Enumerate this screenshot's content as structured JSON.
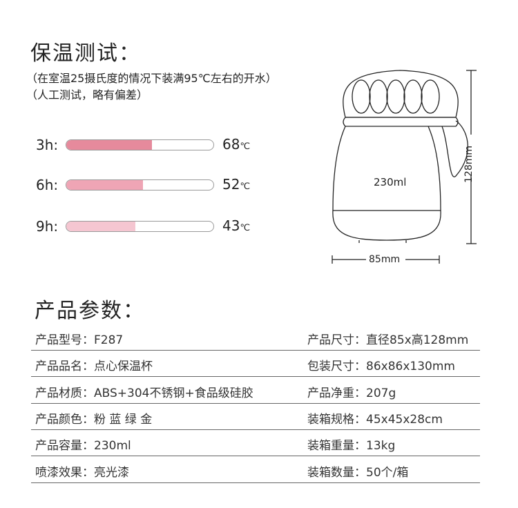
{
  "test": {
    "title": "保温测试：",
    "note1": "（在室温25摄氏度的情况下装满95℃左右的开水）",
    "note2": "（人工测试，略有偏差）",
    "bars": [
      {
        "label": "3h:",
        "value": "68",
        "unit": "℃",
        "fill_percent": 58,
        "color": "#e68a9c"
      },
      {
        "label": "6h:",
        "value": "52",
        "unit": "℃",
        "fill_percent": 52,
        "color": "#efa5b5"
      },
      {
        "label": "9h:",
        "value": "43",
        "unit": "℃",
        "fill_percent": 47,
        "color": "#f5c6d1"
      }
    ]
  },
  "diagram": {
    "capacity": "230ml",
    "height": "128mm",
    "width": "85mm"
  },
  "params": {
    "title": "产品参数：",
    "rows": [
      {
        "left": "产品型号：F287",
        "right": "产品尺寸：直径85x高128mm"
      },
      {
        "left": "产品品名：点心保温杯",
        "right": "包装尺寸：86x86x130mm"
      },
      {
        "left": "产品材质：ABS+304不锈钢+食品级硅胶",
        "right": "产品净重：207g"
      },
      {
        "left": "产品颜色：粉 蓝 绿 金",
        "right": "装箱规格：45x45x28cm"
      },
      {
        "left": "产品容量：230ml",
        "right": "装箱重量：13kg"
      },
      {
        "left": "喷漆效果：亮光漆",
        "right": "装箱数量：50个/箱"
      }
    ]
  }
}
